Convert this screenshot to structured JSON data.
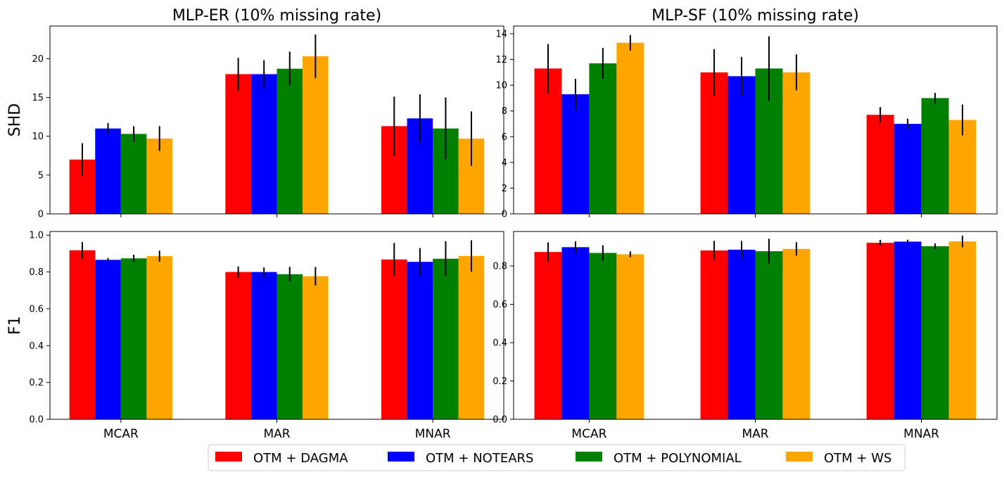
{
  "chart_data": [
    {
      "type": "bar",
      "title": "MLP-ER (10% missing rate)",
      "ylabel": "SHD",
      "categories": [
        "MCAR",
        "MAR",
        "MNAR"
      ],
      "ylim": [
        0,
        24.2
      ],
      "yticks": [
        0,
        5,
        10,
        15,
        20
      ],
      "ytick_labels": [
        "0",
        "5",
        "10",
        "15",
        "20"
      ],
      "show_xtick_labels": false,
      "series": [
        {
          "name": "OTM + DAGMA",
          "values": [
            7.0,
            18.0,
            11.3
          ],
          "errors": [
            2.1,
            2.1,
            3.8
          ]
        },
        {
          "name": "OTM + NOTEARS",
          "values": [
            11.0,
            18.0,
            12.3
          ],
          "errors": [
            0.7,
            1.8,
            3.1
          ]
        },
        {
          "name": "OTM + POLYNOMIAL",
          "values": [
            10.3,
            18.7,
            11.0
          ],
          "errors": [
            1.0,
            2.2,
            4.0
          ]
        },
        {
          "name": "OTM + WS",
          "values": [
            9.7,
            20.3,
            9.7
          ],
          "errors": [
            1.6,
            2.8,
            3.5
          ]
        }
      ]
    },
    {
      "type": "bar",
      "title": "MLP-SF (10% missing rate)",
      "ylabel": "",
      "categories": [
        "MCAR",
        "MAR",
        "MNAR"
      ],
      "ylim": [
        0,
        14.6
      ],
      "yticks": [
        0,
        2,
        4,
        6,
        8,
        10,
        12,
        14
      ],
      "ytick_labels": [
        "0",
        "2",
        "4",
        "6",
        "8",
        "10",
        "12",
        "14"
      ],
      "show_xtick_labels": false,
      "series": [
        {
          "name": "OTM + DAGMA",
          "values": [
            11.3,
            11.0,
            7.7
          ],
          "errors": [
            1.9,
            1.8,
            0.6
          ]
        },
        {
          "name": "OTM + NOTEARS",
          "values": [
            9.3,
            10.7,
            7.0
          ],
          "errors": [
            1.2,
            1.5,
            0.4
          ]
        },
        {
          "name": "OTM + POLYNOMIAL",
          "values": [
            11.7,
            11.3,
            9.0
          ],
          "errors": [
            1.2,
            2.5,
            0.4
          ]
        },
        {
          "name": "OTM + WS",
          "values": [
            13.3,
            11.0,
            7.3
          ],
          "errors": [
            0.6,
            1.4,
            1.2
          ]
        }
      ]
    },
    {
      "type": "bar",
      "title": "",
      "ylabel": "F1",
      "categories": [
        "MCAR",
        "MAR",
        "MNAR"
      ],
      "ylim": [
        0,
        1.02
      ],
      "yticks": [
        0,
        0.2,
        0.4,
        0.6,
        0.8,
        1.0
      ],
      "ytick_labels": [
        "0.0",
        "0.2",
        "0.4",
        "0.6",
        "0.8",
        "1.0"
      ],
      "show_xtick_labels": true,
      "series": [
        {
          "name": "OTM + DAGMA",
          "values": [
            0.918,
            0.8,
            0.868
          ],
          "errors": [
            0.045,
            0.03,
            0.09
          ]
        },
        {
          "name": "OTM + NOTEARS",
          "values": [
            0.866,
            0.8,
            0.855
          ],
          "errors": [
            0.01,
            0.025,
            0.075
          ]
        },
        {
          "name": "OTM + POLYNOMIAL",
          "values": [
            0.874,
            0.788,
            0.872
          ],
          "errors": [
            0.02,
            0.04,
            0.095
          ]
        },
        {
          "name": "OTM + WS",
          "values": [
            0.886,
            0.777,
            0.887
          ],
          "errors": [
            0.03,
            0.05,
            0.085
          ]
        }
      ]
    },
    {
      "type": "bar",
      "title": "",
      "ylabel": "",
      "categories": [
        "MCAR",
        "MAR",
        "MNAR"
      ],
      "ylim": [
        0,
        0.98
      ],
      "yticks": [
        0,
        0.2,
        0.4,
        0.6,
        0.8
      ],
      "ytick_labels": [
        "0.0",
        "0.2",
        "0.4",
        "0.6",
        "0.8"
      ],
      "show_xtick_labels": true,
      "series": [
        {
          "name": "OTM + DAGMA",
          "values": [
            0.873,
            0.881,
            0.921
          ],
          "errors": [
            0.05,
            0.05,
            0.015
          ]
        },
        {
          "name": "OTM + NOTEARS",
          "values": [
            0.898,
            0.885,
            0.927
          ],
          "errors": [
            0.03,
            0.045,
            0.01
          ]
        },
        {
          "name": "OTM + POLYNOMIAL",
          "values": [
            0.868,
            0.877,
            0.903
          ],
          "errors": [
            0.04,
            0.065,
            0.015
          ]
        },
        {
          "name": "OTM + WS",
          "values": [
            0.861,
            0.889,
            0.928
          ],
          "errors": [
            0.015,
            0.035,
            0.03
          ]
        }
      ]
    }
  ],
  "colors": [
    "#ff0000",
    "#0000ff",
    "#008000",
    "#ffa500"
  ],
  "legend": {
    "placement": "bottom-center",
    "entries": [
      "OTM + DAGMA",
      "OTM + NOTEARS",
      "OTM + POLYNOMIAL",
      "OTM + WS"
    ]
  }
}
